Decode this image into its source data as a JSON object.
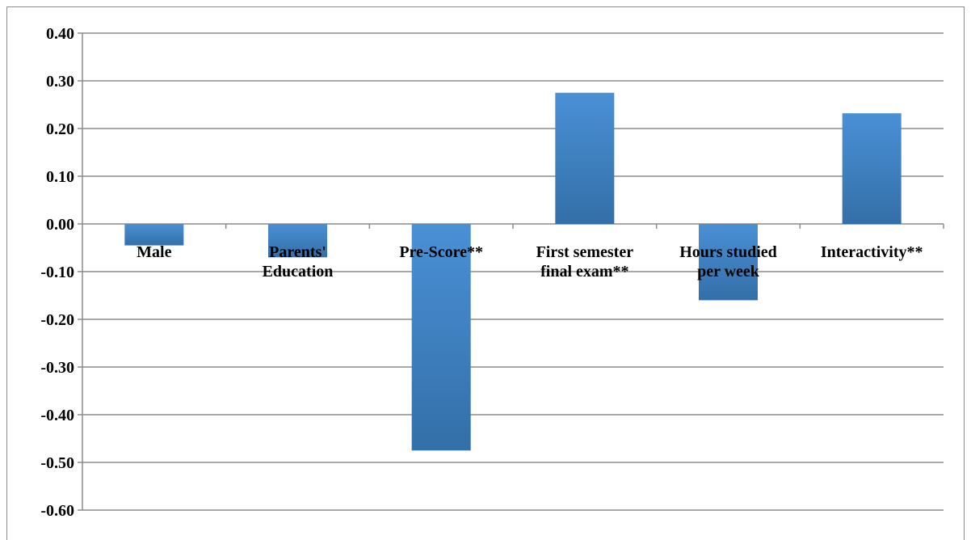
{
  "chart_data": {
    "type": "bar",
    "categories": [
      [
        "Male"
      ],
      [
        "Parents'",
        "Education"
      ],
      [
        "Pre-Score**"
      ],
      [
        "First semester",
        "final exam**"
      ],
      [
        "Hours studied",
        "per week"
      ],
      [
        "Interactivity**"
      ]
    ],
    "values": [
      -0.045,
      -0.07,
      -0.475,
      0.275,
      -0.16,
      0.232
    ],
    "ylim": [
      -0.6,
      0.4
    ],
    "yticks": [
      "0.40",
      "0.30",
      "0.20",
      "0.10",
      "0.00",
      "-0.10",
      "-0.20",
      "-0.30",
      "-0.40",
      "-0.50",
      "-0.60"
    ],
    "ytick_values": [
      0.4,
      0.3,
      0.2,
      0.1,
      0.0,
      -0.1,
      -0.2,
      -0.3,
      -0.4,
      -0.5,
      -0.6
    ],
    "grid": true,
    "legend": "none",
    "colors": {
      "bar_light": "#4a90d6",
      "bar_dark": "#336fa8",
      "grid": "#8c8c8c",
      "axis": "#8c8c8c"
    }
  }
}
